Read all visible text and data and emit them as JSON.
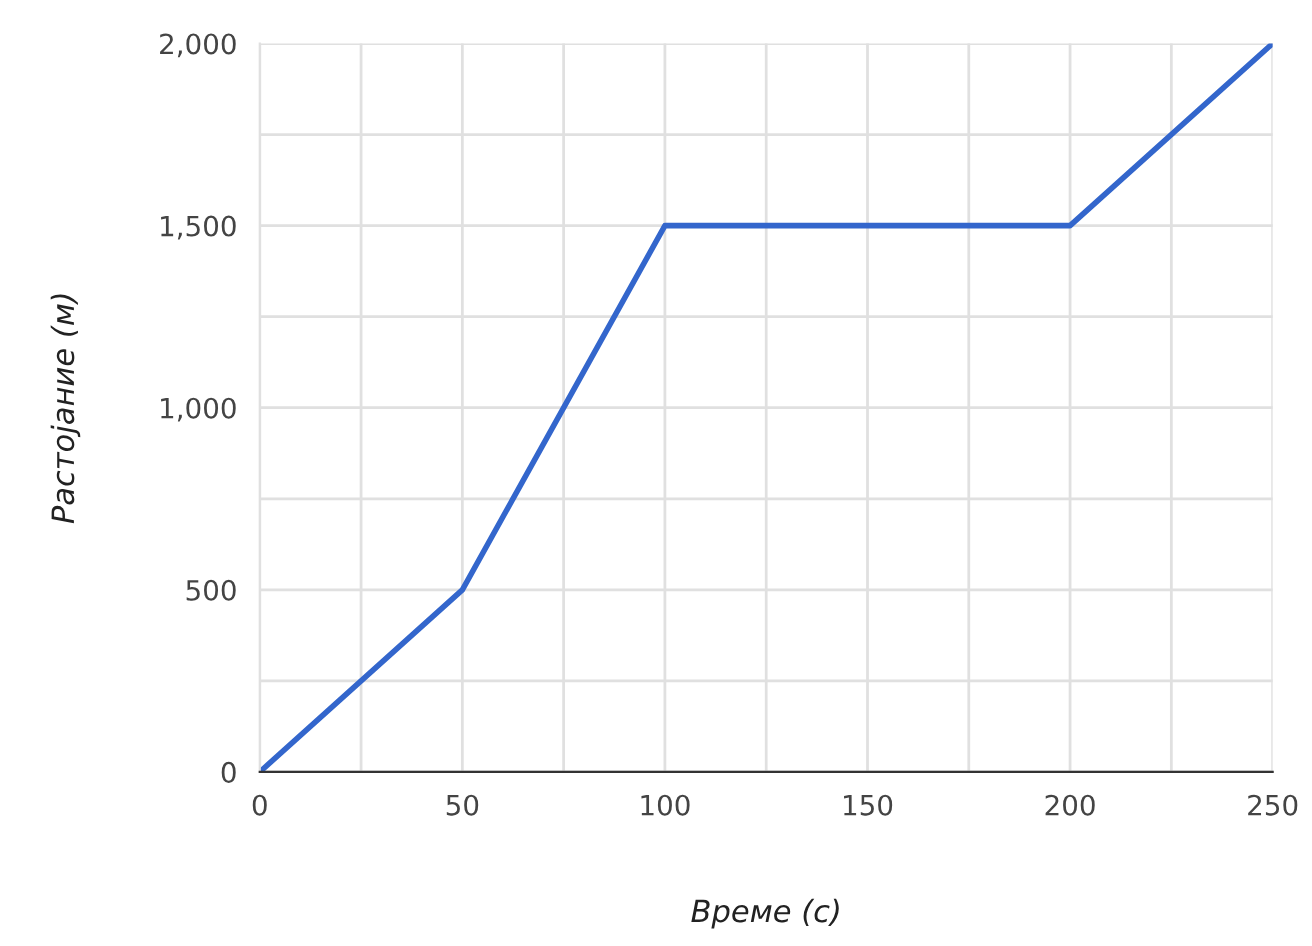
{
  "chart_data": {
    "type": "line",
    "xlabel": "Време (с)",
    "ylabel": "Растојание (м)",
    "x": [
      0,
      50,
      100,
      200,
      250
    ],
    "series": [
      {
        "color": "#3366cc",
        "values": [
          0,
          500,
          1500,
          1500,
          2000
        ]
      }
    ],
    "xlim": [
      0,
      250
    ],
    "xticks": [
      0,
      {
        "value": 25,
        "label": null
      },
      50,
      {
        "value": 75,
        "label": null
      },
      100,
      {
        "value": 125,
        "label": null
      },
      150,
      {
        "value": 175,
        "label": null
      },
      200,
      {
        "value": 225,
        "label": null
      },
      250
    ],
    "ylim": [
      0,
      2000
    ],
    "yticks": [
      {
        "value": 0,
        "label": "0"
      },
      {
        "value": 250,
        "label": null
      },
      {
        "value": 500,
        "label": "500"
      },
      {
        "value": 750,
        "label": null
      },
      {
        "value": 1000,
        "label": "1,000"
      },
      {
        "value": 1250,
        "label": null
      },
      {
        "value": 1500,
        "label": "1,500"
      },
      {
        "value": 1750,
        "label": null
      },
      {
        "value": 2000,
        "label": "2,000"
      }
    ],
    "grid": true,
    "legend": false,
    "marker": "none",
    "line_style": "solid"
  }
}
